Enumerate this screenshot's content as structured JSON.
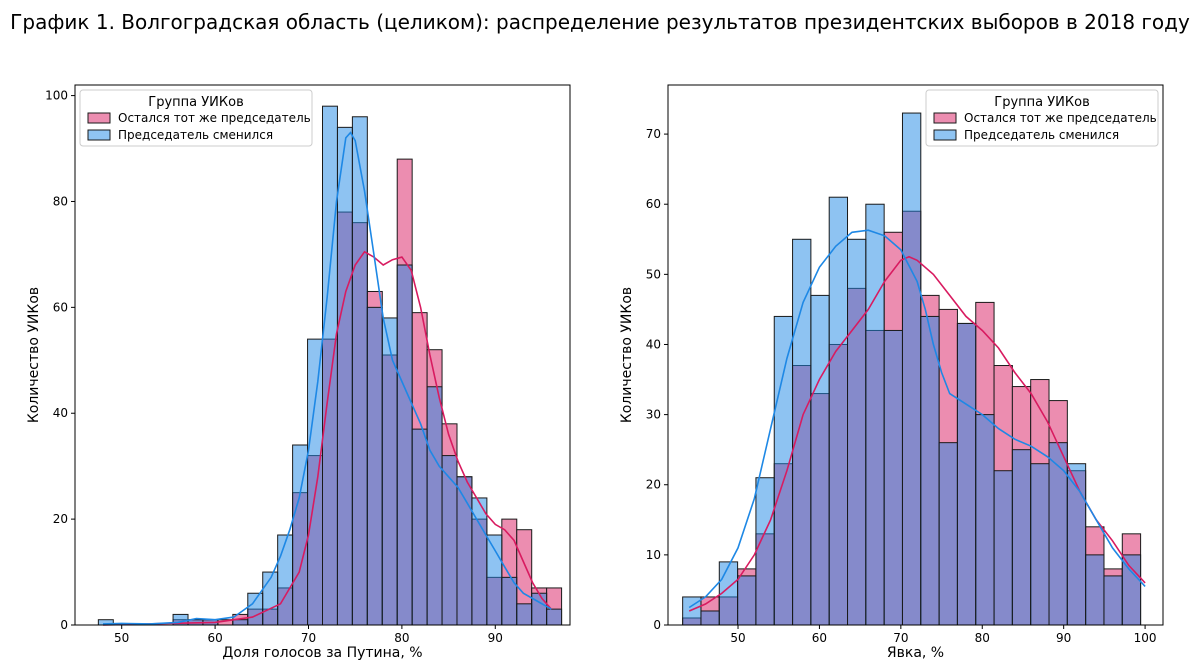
{
  "figure": {
    "title": "График 1. Волгоградская область (целиком): распределение результатов президентских выборов в 2018 году"
  },
  "colors": {
    "same_chair": "#D81B60",
    "changed_chair": "#1E88E5",
    "overlap_fill": "#7F87C8",
    "bar_edge": "#1a1a1a"
  },
  "chart_data": [
    {
      "type": "bar",
      "subtype": "histogram",
      "xlabel": "Доля голосов за Путина, %",
      "ylabel": "Количество УИКов",
      "xlim": [
        45,
        98
      ],
      "ylim": [
        0,
        102
      ],
      "xticks": [
        50,
        60,
        70,
        80,
        90
      ],
      "yticks": [
        0,
        20,
        40,
        60,
        80,
        100
      ],
      "grid": false,
      "legend": {
        "title": "Группа УИКов",
        "placement": "top-left"
      },
      "bin_edges": [
        47.5,
        49.1,
        50.7,
        52.3,
        53.9,
        55.5,
        57.1,
        58.7,
        60.3,
        61.9,
        63.5,
        65.1,
        66.7,
        68.3,
        69.9,
        71.5,
        73.1,
        74.7,
        76.3,
        77.9,
        79.5,
        81.1,
        82.7,
        84.3,
        85.9,
        87.5,
        89.1,
        90.7,
        92.3,
        93.9,
        95.5,
        97.1
      ],
      "series": [
        {
          "name": "Остался тот же председатель",
          "color": "#D81B60",
          "values": [
            0,
            0,
            0,
            0,
            0,
            1,
            1,
            1,
            1,
            2,
            3,
            3,
            7,
            25,
            32,
            54,
            78,
            76,
            63,
            51,
            88,
            59,
            52,
            38,
            28,
            20,
            9,
            20,
            18,
            7,
            7
          ],
          "kde": [
            [
              48,
              0
            ],
            [
              55,
              0.3
            ],
            [
              60,
              0.5
            ],
            [
              64,
              1.5
            ],
            [
              67,
              4
            ],
            [
              69,
              10
            ],
            [
              70,
              17
            ],
            [
              71,
              28
            ],
            [
              72,
              42
            ],
            [
              73,
              55
            ],
            [
              74,
              63
            ],
            [
              75,
              68
            ],
            [
              76,
              70.5
            ],
            [
              77,
              69.5
            ],
            [
              78,
              68
            ],
            [
              79,
              69
            ],
            [
              80,
              69.5
            ],
            [
              81,
              67
            ],
            [
              82,
              60
            ],
            [
              83,
              51
            ],
            [
              84,
              43
            ],
            [
              85,
              36
            ],
            [
              86,
              31
            ],
            [
              87,
              27
            ],
            [
              88,
              24
            ],
            [
              89,
              21
            ],
            [
              90,
              19
            ],
            [
              91,
              18
            ],
            [
              92,
              16
            ],
            [
              93,
              12
            ],
            [
              94,
              8
            ],
            [
              95,
              5
            ],
            [
              96,
              3
            ]
          ]
        },
        {
          "name": "Председатель сменился",
          "color": "#1E88E5",
          "values": [
            1,
            0,
            0,
            0,
            0,
            2,
            1,
            1,
            0,
            1,
            6,
            10,
            17,
            34,
            54,
            98,
            94,
            96,
            60,
            58,
            68,
            37,
            45,
            32,
            28,
            24,
            17,
            9,
            4,
            6,
            3
          ],
          "kde": [
            [
              48,
              0.2
            ],
            [
              50,
              0.3
            ],
            [
              53,
              0.2
            ],
            [
              56,
              0.5
            ],
            [
              58,
              1.2
            ],
            [
              60,
              1
            ],
            [
              62,
              1.5
            ],
            [
              64,
              4
            ],
            [
              66,
              9
            ],
            [
              67,
              13
            ],
            [
              68,
              18
            ],
            [
              69,
              24
            ],
            [
              70,
              33
            ],
            [
              71,
              46
            ],
            [
              72,
              62
            ],
            [
              73,
              80
            ],
            [
              74,
              92
            ],
            [
              74.5,
              93
            ],
            [
              75,
              91.5
            ],
            [
              76,
              82
            ],
            [
              77,
              70
            ],
            [
              78,
              58
            ],
            [
              79,
              50
            ],
            [
              80,
              46
            ],
            [
              81,
              42
            ],
            [
              82,
              38
            ],
            [
              83,
              33
            ],
            [
              84,
              30
            ],
            [
              85,
              28
            ],
            [
              86,
              26
            ],
            [
              87,
              23
            ],
            [
              88,
              20
            ],
            [
              89,
              17
            ],
            [
              90,
              14
            ],
            [
              91,
              11
            ],
            [
              92,
              8
            ],
            [
              93,
              6
            ],
            [
              94,
              5
            ],
            [
              95,
              4
            ],
            [
              96,
              3
            ]
          ]
        }
      ]
    },
    {
      "type": "bar",
      "subtype": "histogram",
      "xlabel": "Явка, %",
      "ylabel": "Количество УИКов",
      "xlim": [
        41.4,
        102.2
      ],
      "ylim": [
        0,
        77
      ],
      "xticks": [
        50,
        60,
        70,
        80,
        90,
        100
      ],
      "yticks": [
        0,
        10,
        20,
        30,
        40,
        50,
        60,
        70
      ],
      "grid": false,
      "legend": {
        "title": "Группа УИКов",
        "placement": "top-right"
      },
      "bin_edges": [
        43.2,
        45.45,
        47.7,
        49.95,
        52.2,
        54.45,
        56.7,
        58.95,
        61.2,
        63.45,
        65.7,
        67.95,
        70.2,
        72.45,
        74.7,
        76.95,
        79.2,
        81.45,
        83.7,
        85.95,
        88.2,
        90.45,
        92.7,
        94.95,
        97.2,
        99.45
      ],
      "series": [
        {
          "name": "Остался тот же председатель",
          "color": "#D81B60",
          "values": [
            1,
            4,
            4,
            8,
            13,
            23,
            37,
            33,
            40,
            48,
            42,
            56,
            59,
            47,
            45,
            43,
            46,
            37,
            34,
            35,
            32,
            22,
            14,
            8,
            13
          ],
          "kde": [
            [
              44,
              2
            ],
            [
              46,
              3
            ],
            [
              48,
              4.5
            ],
            [
              50,
              6.5
            ],
            [
              52,
              10
            ],
            [
              54,
              15
            ],
            [
              56,
              22
            ],
            [
              58,
              30
            ],
            [
              60,
              35
            ],
            [
              62,
              39
            ],
            [
              64,
              42
            ],
            [
              66,
              45
            ],
            [
              68,
              49
            ],
            [
              70,
              52
            ],
            [
              71,
              52.5
            ],
            [
              72,
              52
            ],
            [
              74,
              50
            ],
            [
              76,
              47
            ],
            [
              78,
              44
            ],
            [
              80,
              42
            ],
            [
              82,
              39.5
            ],
            [
              84,
              36
            ],
            [
              86,
              33
            ],
            [
              88,
              29
            ],
            [
              90,
              24
            ],
            [
              92,
              19
            ],
            [
              94,
              15
            ],
            [
              96,
              12
            ],
            [
              98,
              8.5
            ],
            [
              100,
              6
            ]
          ]
        },
        {
          "name": "Председатель сменился",
          "color": "#1E88E5",
          "values": [
            4,
            2,
            9,
            7,
            21,
            44,
            55,
            47,
            61,
            55,
            60,
            42,
            73,
            44,
            26,
            43,
            30,
            22,
            25,
            23,
            26,
            23,
            10,
            7,
            10
          ],
          "kde": [
            [
              44,
              2.5
            ],
            [
              46,
              4
            ],
            [
              48,
              6.5
            ],
            [
              50,
              11
            ],
            [
              52,
              18
            ],
            [
              54,
              28
            ],
            [
              56,
              38
            ],
            [
              58,
              46
            ],
            [
              60,
              51
            ],
            [
              62,
              54
            ],
            [
              64,
              56
            ],
            [
              66,
              56.3
            ],
            [
              68,
              55.5
            ],
            [
              70,
              53.5
            ],
            [
              72,
              49
            ],
            [
              73,
              45
            ],
            [
              74,
              40
            ],
            [
              75,
              36
            ],
            [
              76,
              33
            ],
            [
              78,
              31.5
            ],
            [
              80,
              30
            ],
            [
              82,
              28
            ],
            [
              84,
              26.5
            ],
            [
              86,
              25.5
            ],
            [
              88,
              24
            ],
            [
              90,
              22
            ],
            [
              92,
              19
            ],
            [
              94,
              15
            ],
            [
              96,
              11
            ],
            [
              98,
              8
            ],
            [
              100,
              5.5
            ]
          ]
        }
      ]
    }
  ]
}
